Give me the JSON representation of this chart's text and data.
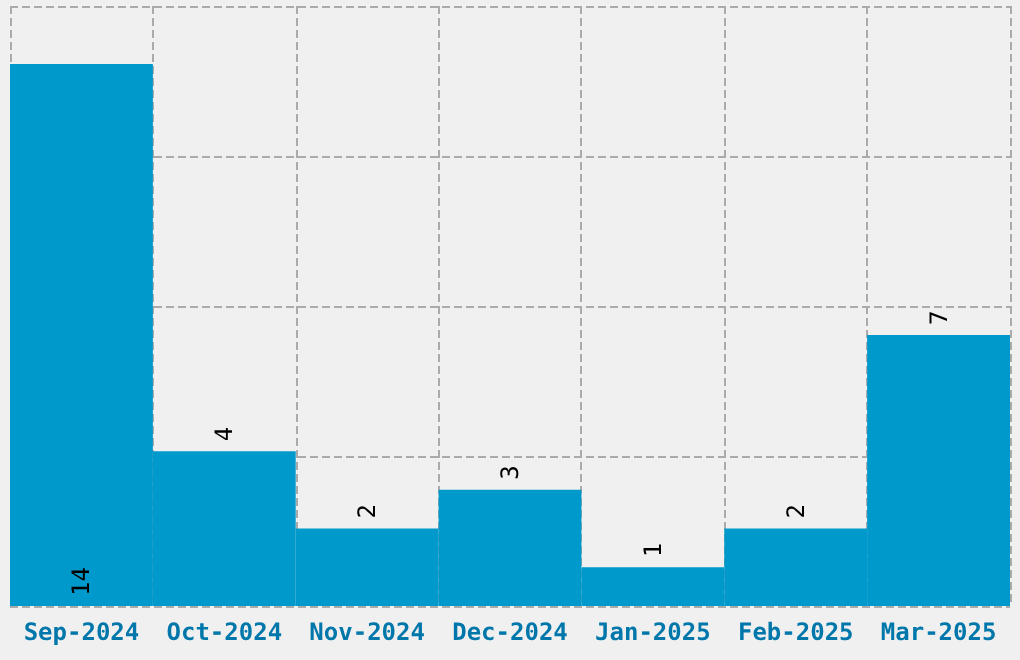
{
  "chart_data": {
    "type": "bar",
    "categories": [
      "Sep-2024",
      "Oct-2024",
      "Nov-2024",
      "Dec-2024",
      "Jan-2025",
      "Feb-2025",
      "Mar-2025"
    ],
    "values": [
      14,
      4,
      2,
      3,
      1,
      2,
      7
    ],
    "color": "#0099cc",
    "ylim": [
      0,
      15.5
    ],
    "yticks": [
      {
        "value": 0,
        "label": null
      },
      {
        "value": 3.875,
        "label": null
      },
      {
        "value": 7.75,
        "label": null
      },
      {
        "value": 11.625,
        "label": null
      },
      {
        "value": 15.5,
        "label": null
      }
    ],
    "grid": true,
    "data_labels": true,
    "tick_labels": "x"
  }
}
